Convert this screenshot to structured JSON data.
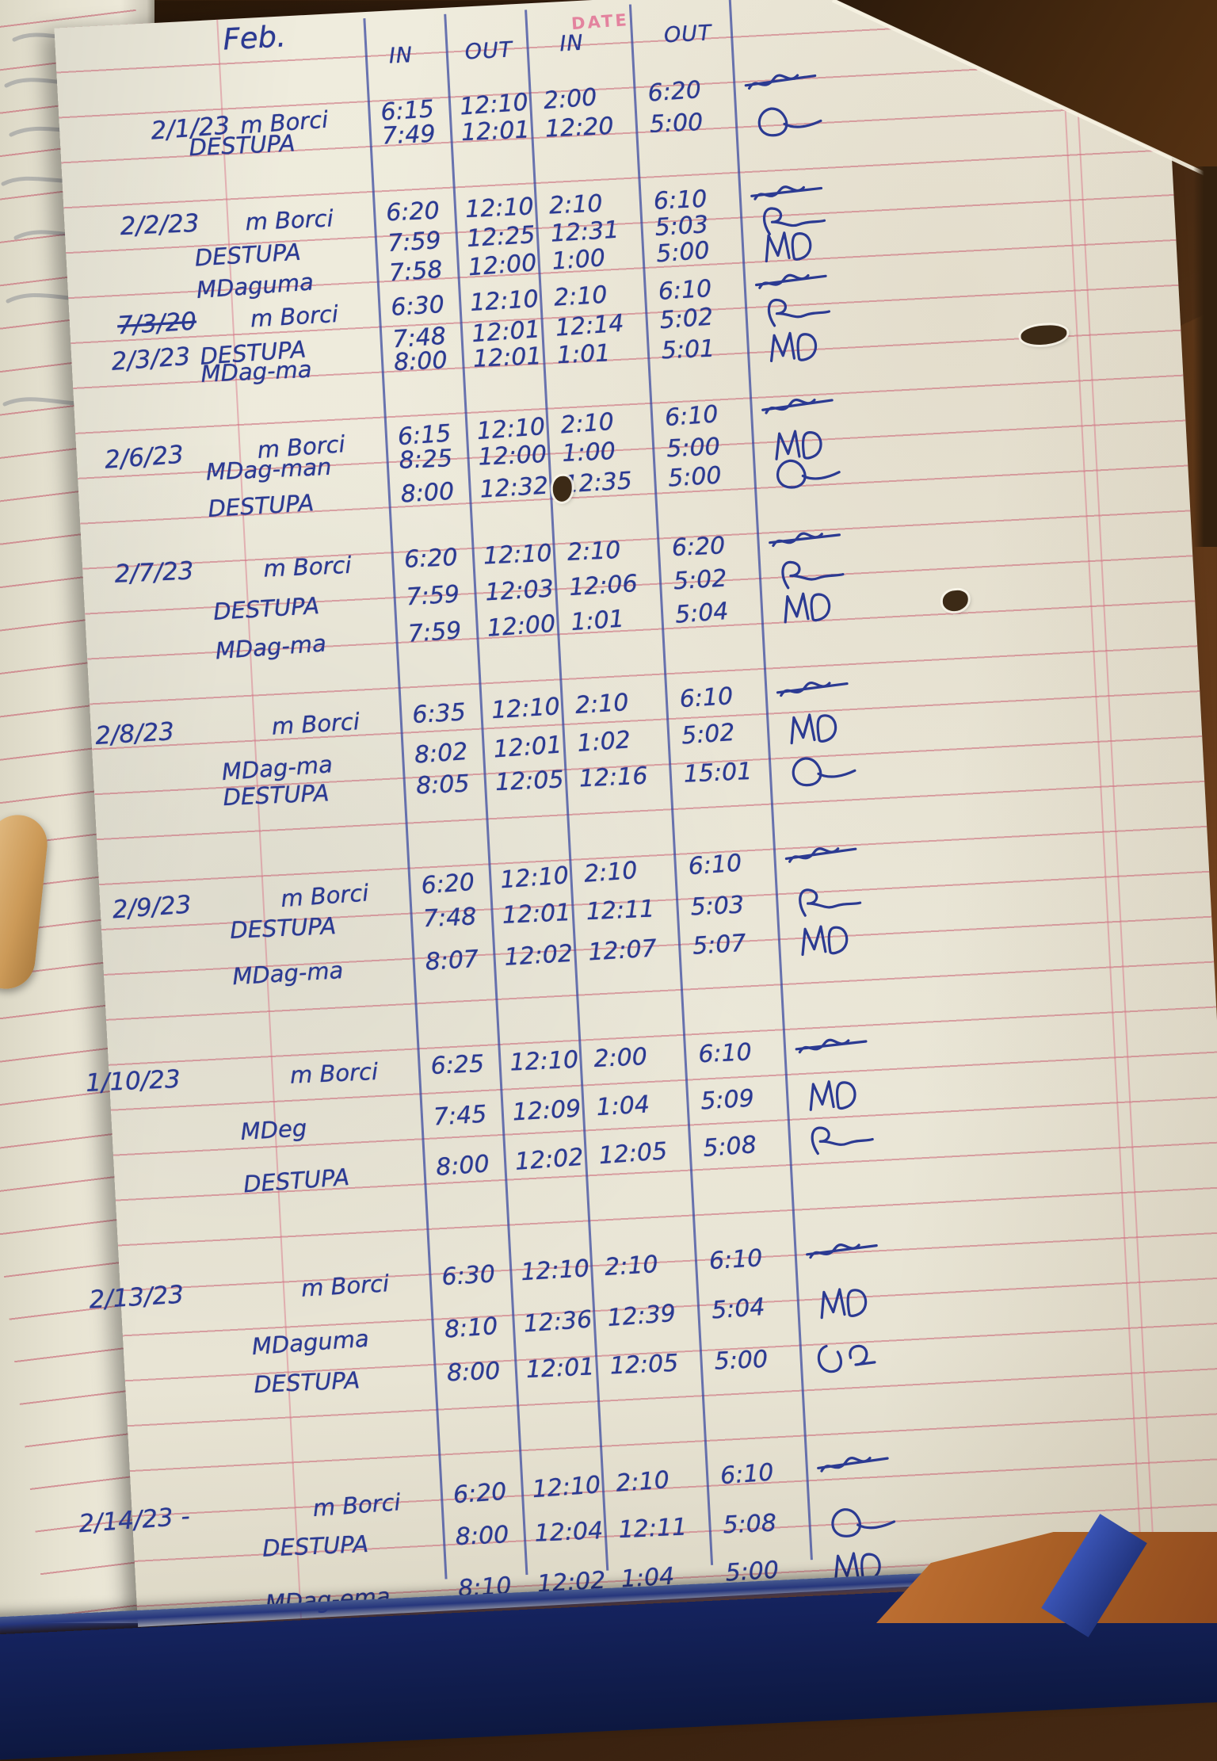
{
  "page": {
    "month_label": "Feb.",
    "stamp_label": "DATE",
    "column_headers": [
      "IN",
      "OUT",
      "IN",
      "OUT"
    ],
    "blocks": [
      {
        "date": "2/1/23",
        "alt_date": "",
        "rows": [
          {
            "name": "m Borci",
            "times": [
              "6:15",
              "12:10",
              "2:00",
              "6:20"
            ],
            "sig": "strike-scribble-signature"
          },
          {
            "name": "DESTUPA",
            "times": [
              "7:49",
              "12:01",
              "12:20",
              "5:00"
            ],
            "sig": "d-flourish-signature"
          }
        ]
      },
      {
        "date": "2/2/23",
        "alt_date": "",
        "rows": [
          {
            "name": "m Borci",
            "times": [
              "6:20",
              "12:10",
              "2:10",
              "6:10"
            ],
            "sig": "strike-scribble-signature"
          },
          {
            "name": "DESTUPA",
            "times": [
              "7:59",
              "12:25",
              "12:31",
              "5:03"
            ],
            "sig": "r-flourish-signature"
          },
          {
            "name": "MDaguma",
            "times": [
              "7:58",
              "12:00",
              "1:00",
              "5:00"
            ],
            "sig": "md-initials-signature"
          }
        ]
      },
      {
        "date": "2/3/23",
        "alt_date": "7/3/20",
        "rows": [
          {
            "name": "m Borci",
            "times": [
              "6:30",
              "12:10",
              "2:10",
              "6:10"
            ],
            "sig": "strike-scribble-signature"
          },
          {
            "name": "DESTUPA",
            "times": [
              "7:48",
              "12:01",
              "12:14",
              "5:02"
            ],
            "sig": "r-flourish-signature"
          },
          {
            "name": "MDag-ma",
            "times": [
              "8:00",
              "12:01",
              "1:01",
              "5:01"
            ],
            "sig": "md-initials-signature"
          }
        ]
      },
      {
        "date": "2/6/23",
        "alt_date": "",
        "rows": [
          {
            "name": "m Borci",
            "times": [
              "6:15",
              "12:10",
              "2:10",
              "6:10"
            ],
            "sig": "strike-scribble-signature"
          },
          {
            "name": "MDag-man",
            "times": [
              "8:25",
              "12:00",
              "1:00",
              "5:00"
            ],
            "sig": "md-initials-signature"
          },
          {
            "name": "DESTUPA",
            "times": [
              "8:00",
              "12:32",
              "12:35",
              "5:00"
            ],
            "sig": "d-flourish-signature"
          }
        ]
      },
      {
        "date": "2/7/23",
        "alt_date": "",
        "rows": [
          {
            "name": "m Borci",
            "times": [
              "6:20",
              "12:10",
              "2:10",
              "6:20"
            ],
            "sig": "strike-scribble-signature"
          },
          {
            "name": "DESTUPA",
            "times": [
              "7:59",
              "12:03",
              "12:06",
              "5:02"
            ],
            "sig": "r-flourish-signature"
          },
          {
            "name": "MDag-ma",
            "times": [
              "7:59",
              "12:00",
              "1:01",
              "5:04"
            ],
            "sig": "md-initials-signature"
          }
        ]
      },
      {
        "date": "2/8/23",
        "alt_date": "",
        "rows": [
          {
            "name": "m Borci",
            "times": [
              "6:35",
              "12:10",
              "2:10",
              "6:10"
            ],
            "sig": "strike-scribble-signature"
          },
          {
            "name": "MDag-ma",
            "times": [
              "8:02",
              "12:01",
              "1:02",
              "5:02"
            ],
            "sig": "md-initials-signature"
          },
          {
            "name": "DESTUPA",
            "times": [
              "8:05",
              "12:05",
              "12:16",
              "15:01"
            ],
            "sig": "d-flourish-signature"
          }
        ]
      },
      {
        "date": "2/9/23",
        "alt_date": "",
        "rows": [
          {
            "name": "m Borci",
            "times": [
              "6:20",
              "12:10",
              "2:10",
              "6:10"
            ],
            "sig": "strike-scribble-signature"
          },
          {
            "name": "DESTUPA",
            "times": [
              "7:48",
              "12:01",
              "12:11",
              "5:03"
            ],
            "sig": "r-flourish-signature"
          },
          {
            "name": "MDag-ma",
            "times": [
              "8:07",
              "12:02",
              "12:07",
              "5:07"
            ],
            "sig": "md-initials-signature"
          }
        ]
      },
      {
        "date": "1/10/23",
        "alt_date": "",
        "rows": [
          {
            "name": "m Borci",
            "times": [
              "6:25",
              "12:10",
              "2:00",
              "6:10"
            ],
            "sig": "strike-scribble-signature"
          },
          {
            "name": "MDeg",
            "times": [
              "7:45",
              "12:09",
              "1:04",
              "5:09"
            ],
            "sig": "md-initials-signature"
          },
          {
            "name": "DESTUPA",
            "times": [
              "8:00",
              "12:02",
              "12:05",
              "5:08"
            ],
            "sig": "r-flourish-signature"
          }
        ]
      },
      {
        "date": "2/13/23",
        "alt_date": "",
        "rows": [
          {
            "name": "m Borci",
            "times": [
              "6:30",
              "12:10",
              "2:10",
              "6:10"
            ],
            "sig": "strike-scribble-signature"
          },
          {
            "name": "MDaguma",
            "times": [
              "8:10",
              "12:36",
              "12:39",
              "5:04"
            ],
            "sig": "md-initials-signature"
          },
          {
            "name": "DESTUPA",
            "times": [
              "8:00",
              "12:01",
              "12:05",
              "5:00"
            ],
            "sig": "dg-initials-signature"
          }
        ]
      },
      {
        "date": "2/14/23 -",
        "alt_date": "",
        "rows": [
          {
            "name": "m Borci",
            "times": [
              "6:20",
              "12:10",
              "2:10",
              "6:10"
            ],
            "sig": "strike-scribble-signature"
          },
          {
            "name": "DESTUPA",
            "times": [
              "8:00",
              "12:04",
              "12:11",
              "5:08"
            ],
            "sig": "d-flourish-signature"
          },
          {
            "name": "MDag-ema",
            "times": [
              "8:10",
              "12:02",
              "1:04",
              "5:00"
            ],
            "sig": "md-initials-signature"
          }
        ]
      }
    ]
  },
  "colors": {
    "ink": "#2b3a92",
    "ruled_line": "#c65868",
    "column_line": "#34449e",
    "paper": "#ece9da",
    "stamp_pink": "#e26a90",
    "cover_blue": "#15235e",
    "desk_wood": "#5a3517"
  }
}
